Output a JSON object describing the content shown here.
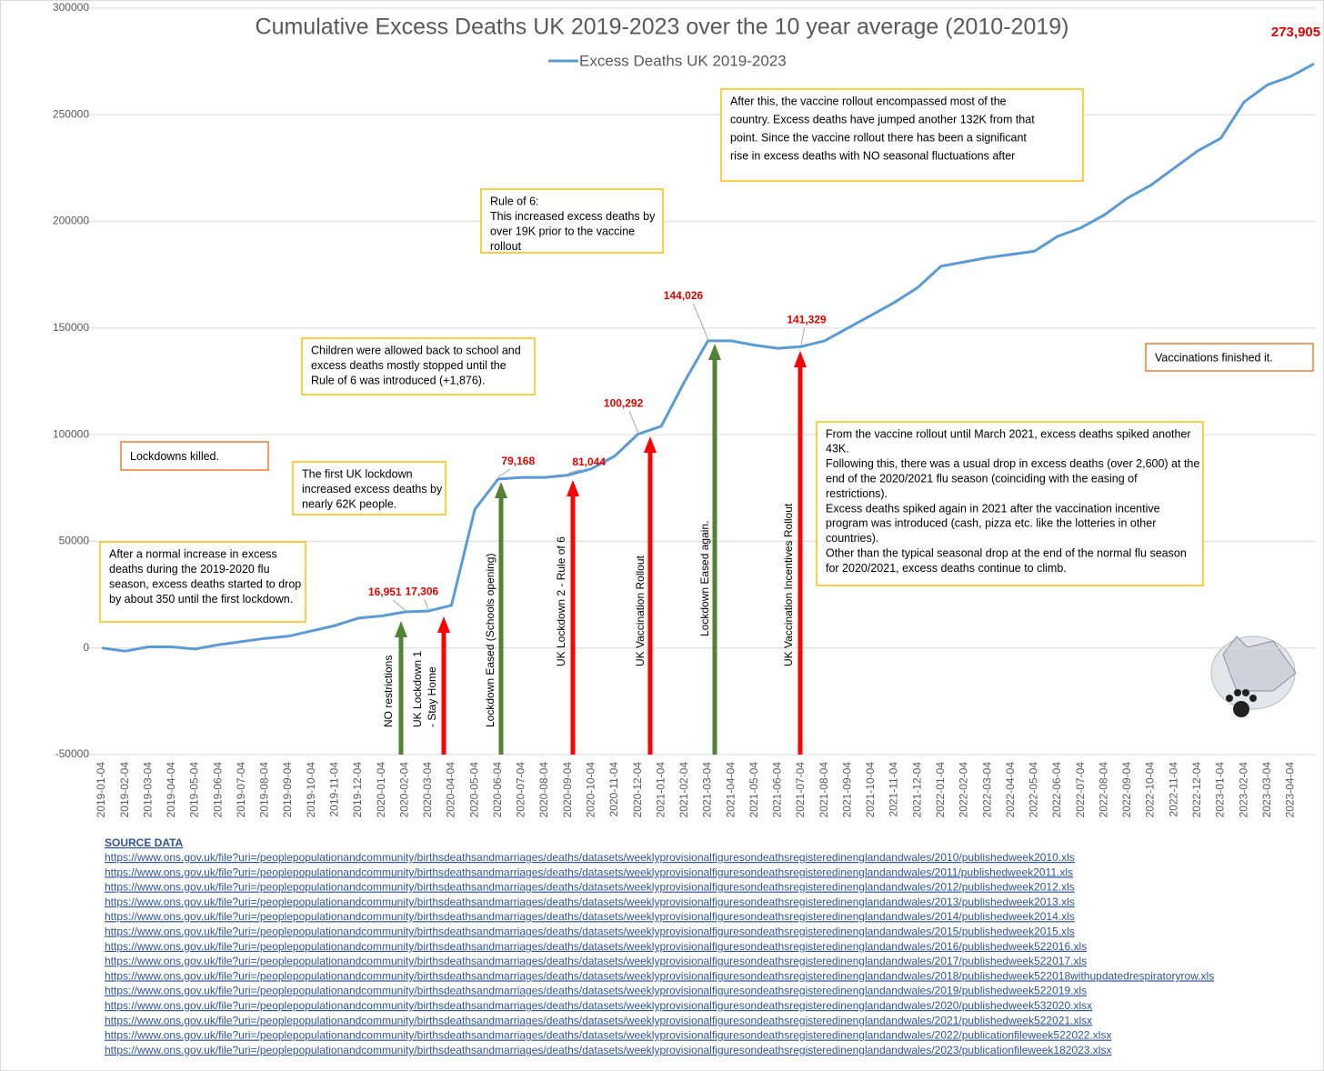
{
  "chart_data": {
    "type": "line",
    "title": "Cumulative Excess Deaths UK 2019-2023 over the 10 year average (2010-2019)",
    "categories": [
      "2019-01-04",
      "2019-02-04",
      "2019-03-04",
      "2019-04-04",
      "2019-05-04",
      "2019-06-04",
      "2019-07-04",
      "2019-08-04",
      "2019-09-04",
      "2019-10-04",
      "2019-11-04",
      "2019-12-04",
      "2020-01-04",
      "2020-02-04",
      "2020-03-04",
      "2020-04-04",
      "2020-05-04",
      "2020-06-04",
      "2020-07-04",
      "2020-08-04",
      "2020-09-04",
      "2020-10-04",
      "2020-11-04",
      "2020-12-04",
      "2021-01-04",
      "2021-02-04",
      "2021-03-04",
      "2021-04-04",
      "2021-05-04",
      "2021-06-04",
      "2021-07-04",
      "2021-08-04",
      "2021-09-04",
      "2021-10-04",
      "2021-11-04",
      "2021-12-04",
      "2022-01-04",
      "2022-02-04",
      "2022-03-04",
      "2022-04-04",
      "2022-05-04",
      "2022-06-04",
      "2022-07-04",
      "2022-08-04",
      "2022-09-04",
      "2022-10-04",
      "2022-11-04",
      "2022-12-04",
      "2023-01-04",
      "2023-02-04",
      "2023-03-04",
      "2023-04-04",
      null
    ],
    "series": [
      {
        "name": "Excess Deaths UK 2019-2023",
        "color": "#5b9bd5",
        "values": [
          0,
          -1500,
          500,
          500,
          -500,
          1500,
          3000,
          4500,
          5500,
          8000,
          10500,
          14000,
          15000,
          16951,
          17306,
          20000,
          65000,
          79168,
          80000,
          80000,
          81044,
          84000,
          90000,
          100292,
          104000,
          125000,
          144026,
          144000,
          142000,
          140500,
          141329,
          144000,
          150000,
          156000,
          162000,
          169000,
          179000,
          181000,
          183000,
          184500,
          186000,
          193000,
          197000,
          203000,
          211000,
          217000,
          225000,
          233000,
          239000,
          256000,
          264000,
          268000,
          273905
        ],
        "value_labels": [
          null,
          null,
          null,
          null,
          null,
          null,
          null,
          null,
          null,
          null,
          null,
          null,
          null,
          "16,951",
          "17,306",
          null,
          null,
          "79,168",
          null,
          null,
          "81,044",
          null,
          null,
          "100,292",
          null,
          null,
          "144,026",
          null,
          null,
          null,
          "141,329",
          null,
          null,
          null,
          null,
          null,
          null,
          null,
          null,
          null,
          null,
          null,
          null,
          null,
          null,
          null,
          null,
          null,
          null,
          null,
          null,
          null,
          "273,905"
        ],
        "label_color": "#e00000"
      }
    ],
    "ylim": [
      -50000,
      300000
    ],
    "yticks": [
      -50000,
      0,
      50000,
      100000,
      150000,
      200000,
      250000,
      300000
    ],
    "grid": true,
    "legend": "top",
    "annotations": [
      {
        "lines": [
          "After a normal increase in excess",
          "deaths during the 2019-2020 flu",
          "season, excess deaths started to drop",
          "by about 350 until the first lockdown."
        ],
        "border": "#ffc000"
      },
      {
        "lines": [
          "Lockdowns killed."
        ],
        "border": "#ed7d31"
      },
      {
        "lines": [
          "The first UK lockdown",
          "increased excess deaths by",
          "nearly 62K people."
        ],
        "border": "#ffc000"
      },
      {
        "lines": [
          "Children were allowed back to school and",
          "excess deaths mostly stopped until the",
          "Rule of 6 was introduced (+1,876)."
        ],
        "border": "#ffc000"
      },
      {
        "lines": [
          "Rule of 6:",
          "This increased excess deaths by",
          "over 19K prior to the vaccine",
          "rollout"
        ],
        "border": "#ffc000"
      },
      {
        "lines": [
          "After this, the vaccine rollout encompassed most of the",
          "country. Excess deaths have jumped another 132K from that",
          "point. Since the vaccine rollout there has been a significant",
          "rise in excess deaths with NO seasonal fluctuations after"
        ],
        "border": "#ffc000"
      },
      {
        "lines": [
          "Vaccinations finished it."
        ],
        "border": "#ed7d31"
      },
      {
        "lines": [
          "From the vaccine rollout until March 2021, excess deaths spiked another",
          "43K.",
          "Following this, there was a usual drop in excess deaths (over 2,600) at the",
          "end of the 2020/2021 flu season (coinciding with the easing of",
          "restrictions).",
          "Excess deaths spiked again in 2021 after the vaccination incentive",
          "program was introduced (cash, pizza etc. like the  lotteries in other",
          "countries).",
          "Other than the typical seasonal drop at the end of the normal flu season",
          "for 2020/2021, excess deaths continue to climb."
        ],
        "border": "#ffc000"
      }
    ],
    "arrows": [
      {
        "lines": [
          "NO restrictions"
        ],
        "color": "#548235"
      },
      {
        "lines": [
          "UK Lockdown 1",
          " - Stay Home"
        ],
        "color": "#ff0000"
      },
      {
        "lines": [
          "Lockdown Eased (Schools opening)"
        ],
        "color": "#548235"
      },
      {
        "lines": [
          "UK Lockdown 2 - Rule of 6"
        ],
        "color": "#ff0000"
      },
      {
        "lines": [
          "UK Vaccination Rollout"
        ],
        "color": "#ff0000"
      },
      {
        "lines": [
          "Lockdown Eased again."
        ],
        "color": "#548235"
      },
      {
        "lines": [
          "UK Vaccination Incentives Rollout"
        ],
        "color": "#ff0000"
      }
    ]
  },
  "sources": {
    "title": "SOURCE DATA",
    "links": [
      "https://www.ons.gov.uk/file?uri=/peoplepopulationandcommunity/birthsdeathsandmarriages/deaths/datasets/weeklyprovisionalfiguresondeathsregisteredinenglandandwales/2010/publishedweek2010.xls",
      "https://www.ons.gov.uk/file?uri=/peoplepopulationandcommunity/birthsdeathsandmarriages/deaths/datasets/weeklyprovisionalfiguresondeathsregisteredinenglandandwales/2011/publishedweek2011.xls",
      "https://www.ons.gov.uk/file?uri=/peoplepopulationandcommunity/birthsdeathsandmarriages/deaths/datasets/weeklyprovisionalfiguresondeathsregisteredinenglandandwales/2012/publishedweek2012.xls",
      "https://www.ons.gov.uk/file?uri=/peoplepopulationandcommunity/birthsdeathsandmarriages/deaths/datasets/weeklyprovisionalfiguresondeathsregisteredinenglandandwales/2013/publishedweek2013.xls",
      "https://www.ons.gov.uk/file?uri=/peoplepopulationandcommunity/birthsdeathsandmarriages/deaths/datasets/weeklyprovisionalfiguresondeathsregisteredinenglandandwales/2014/publishedweek2014.xls",
      "https://www.ons.gov.uk/file?uri=/peoplepopulationandcommunity/birthsdeathsandmarriages/deaths/datasets/weeklyprovisionalfiguresondeathsregisteredinenglandandwales/2015/publishedweek2015.xls",
      "https://www.ons.gov.uk/file?uri=/peoplepopulationandcommunity/birthsdeathsandmarriages/deaths/datasets/weeklyprovisionalfiguresondeathsregisteredinenglandandwales/2016/publishedweek522016.xls",
      "https://www.ons.gov.uk/file?uri=/peoplepopulationandcommunity/birthsdeathsandmarriages/deaths/datasets/weeklyprovisionalfiguresondeathsregisteredinenglandandwales/2017/publishedweek522017.xls",
      "https://www.ons.gov.uk/file?uri=/peoplepopulationandcommunity/birthsdeathsandmarriages/deaths/datasets/weeklyprovisionalfiguresondeathsregisteredinenglandandwales/2018/publishedweek522018withupdatedrespiratoryrow.xls",
      "https://www.ons.gov.uk/file?uri=/peoplepopulationandcommunity/birthsdeathsandmarriages/deaths/datasets/weeklyprovisionalfiguresondeathsregisteredinenglandandwales/2019/publishedweek522019.xls",
      "https://www.ons.gov.uk/file?uri=/peoplepopulationandcommunity/birthsdeathsandmarriages/deaths/datasets/weeklyprovisionalfiguresondeathsregisteredinenglandandwales/2020/publishedweek532020.xlsx",
      "https://www.ons.gov.uk/file?uri=/peoplepopulationandcommunity/birthsdeathsandmarriages/deaths/datasets/weeklyprovisionalfiguresondeathsregisteredinenglandandwales/2021/publishedweek522021.xlsx",
      "https://www.ons.gov.uk/file?uri=/peoplepopulationandcommunity/birthsdeathsandmarriages/deaths/datasets/weeklyprovisionalfiguresondeathsregisteredinenglandandwales/2022/publicationfileweek522022.xlsx",
      "https://www.ons.gov.uk/file?uri=/peoplepopulationandcommunity/birthsdeathsandmarriages/deaths/datasets/weeklyprovisionalfiguresondeathsregisteredinenglandandwales/2023/publicationfileweek182023.xlsx"
    ]
  }
}
